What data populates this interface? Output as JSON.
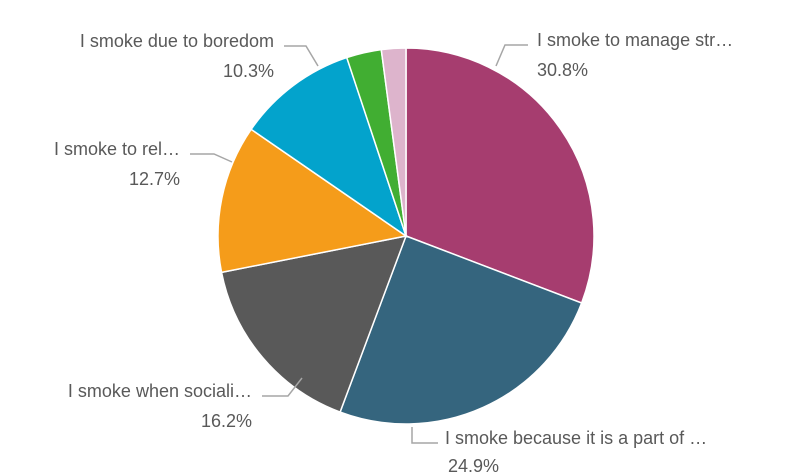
{
  "chart_data": {
    "type": "pie",
    "start": "12 o'clock",
    "direction": "clockwise",
    "slices": [
      {
        "label": "I smoke to manage str…",
        "value": 30.8,
        "value_label": "30.8%",
        "color": "#a63d6f"
      },
      {
        "label": "I smoke because it is a part of …",
        "value": 24.9,
        "value_label": "24.9%",
        "color": "#35657e"
      },
      {
        "label": "I smoke when sociali…",
        "value": 16.2,
        "value_label": "16.2%",
        "color": "#595959"
      },
      {
        "label": "I smoke to rel…",
        "value": 12.7,
        "value_label": "12.7%",
        "color": "#f59c1a"
      },
      {
        "label": "I smoke due to boredom",
        "value": 10.3,
        "value_label": "10.3%",
        "color": "#03a3cc"
      },
      {
        "label": "",
        "value": 3.0,
        "value_label": "",
        "color": "#41ae32"
      },
      {
        "label": "",
        "value": 2.1,
        "value_label": "",
        "color": "#ddb4cc"
      }
    ]
  }
}
